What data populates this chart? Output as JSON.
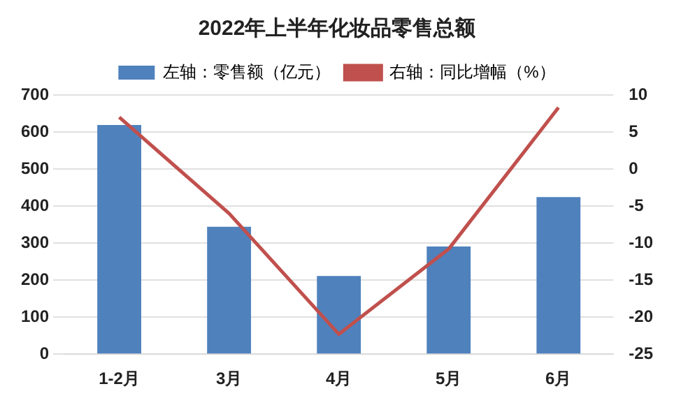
{
  "chart_data": {
    "type": "bar",
    "title": "2022年上半年化妆品零售总额",
    "categories": [
      "1-2月",
      "3月",
      "4月",
      "5月",
      "6月"
    ],
    "series": [
      {
        "name": "左轴：零售额（亿元）",
        "color": "#4f81bd",
        "values": [
          619,
          344,
          211,
          291,
          424
        ]
      },
      {
        "name": "右轴：同比增幅（%）",
        "type": "line",
        "axis": "y2",
        "color": "#c0504d",
        "values": [
          7.0,
          -6.0,
          -22.3,
          -10.8,
          8.3
        ]
      }
    ],
    "ylim": [
      0,
      700
    ],
    "yticks": [
      0,
      100,
      200,
      300,
      400,
      500,
      600,
      700
    ],
    "y2lim": [
      -25,
      10
    ],
    "y2ticks": [
      -25,
      -20,
      -15,
      -10,
      -5,
      0,
      5,
      10
    ],
    "grid": "y",
    "legend": "top",
    "marker": "none"
  }
}
